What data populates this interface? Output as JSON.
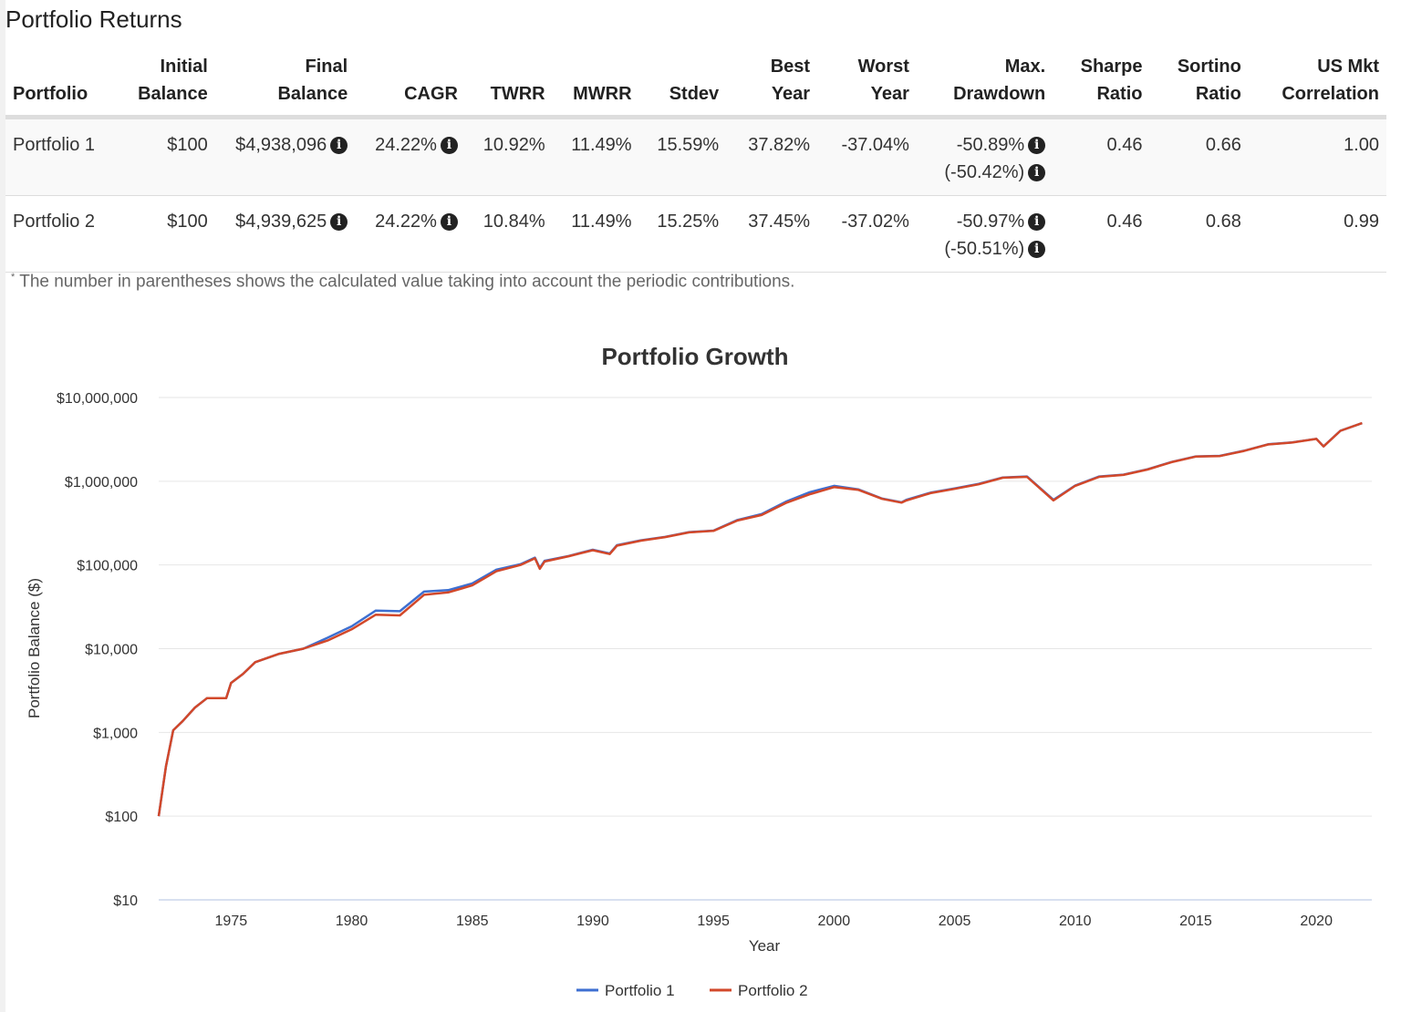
{
  "title": "Portfolio Returns",
  "table": {
    "headers": [
      [
        "",
        "Portfolio"
      ],
      [
        "Initial",
        "Balance"
      ],
      [
        "Final",
        "Balance"
      ],
      [
        "",
        "CAGR"
      ],
      [
        "",
        "TWRR"
      ],
      [
        "",
        "MWRR"
      ],
      [
        "",
        "Stdev"
      ],
      [
        "Best",
        "Year"
      ],
      [
        "Worst",
        "Year"
      ],
      [
        "Max.",
        "Drawdown"
      ],
      [
        "Sharpe",
        "Ratio"
      ],
      [
        "Sortino",
        "Ratio"
      ],
      [
        "US Mkt",
        "Correlation"
      ]
    ],
    "rows": [
      {
        "portfolio": "Portfolio 1",
        "initial": "$100",
        "final": "$4,938,096",
        "cagr": "24.22%",
        "twrr": "10.92%",
        "mwrr": "11.49%",
        "stdev": "15.59%",
        "best": "37.82%",
        "worst": "-37.04%",
        "maxdd": "-50.89%",
        "maxdd_contrib": "(-50.42%)",
        "sharpe": "0.46",
        "sortino": "0.66",
        "corr": "1.00"
      },
      {
        "portfolio": "Portfolio 2",
        "initial": "$100",
        "final": "$4,939,625",
        "cagr": "24.22%",
        "twrr": "10.84%",
        "mwrr": "11.49%",
        "stdev": "15.25%",
        "best": "37.45%",
        "worst": "-37.02%",
        "maxdd": "-50.97%",
        "maxdd_contrib": "(-50.51%)",
        "sharpe": "0.46",
        "sortino": "0.68",
        "corr": "0.99"
      }
    ],
    "info_icon": "info-circle-icon"
  },
  "footnote_mark": "*",
  "footnote": "The number in parentheses shows the calculated value taking into account the periodic contributions.",
  "chart_data": {
    "type": "line",
    "title": "Portfolio Growth",
    "xlabel": "Year",
    "ylabel": "Portfolio Balance ($)",
    "yscale": "log",
    "ylim": [
      10,
      10000000
    ],
    "xlim": [
      1972,
      2022.3
    ],
    "xticks": [
      "1975",
      "1980",
      "1985",
      "1990",
      "1995",
      "2000",
      "2005",
      "2010",
      "2015",
      "2020"
    ],
    "yticks": [
      "$10",
      "$100",
      "$1,000",
      "$10,000",
      "$100,000",
      "$1,000,000",
      "$10,000,000"
    ],
    "grid": true,
    "legend": "bottom",
    "x": [
      1972.0,
      1972.3,
      1972.6,
      1973,
      1973.5,
      1974,
      1974.8,
      1975,
      1975.5,
      1976,
      1977,
      1978,
      1979,
      1980,
      1981,
      1982,
      1983,
      1984,
      1985,
      1986,
      1987,
      1987.6,
      1987.8,
      1988,
      1989,
      1990,
      1990.7,
      1991,
      1992,
      1993,
      1994,
      1995,
      1996,
      1997,
      1998,
      1999,
      2000,
      2001,
      2002,
      2002.8,
      2003,
      2004,
      2005,
      2006,
      2007,
      2008,
      2009.1,
      2010,
      2011,
      2012,
      2013,
      2014,
      2015,
      2016,
      2017,
      2018,
      2019,
      2020,
      2020.3,
      2021,
      2021.9
    ],
    "series": [
      {
        "name": "Portfolio 1",
        "color": "#3d6fd1",
        "values": [
          100,
          390,
          1060,
          1370,
          1980,
          2560,
          2560,
          3900,
          5000,
          6900,
          8700,
          10000,
          13500,
          18500,
          28500,
          28000,
          48000,
          50000,
          60000,
          88000,
          102000,
          122000,
          92000,
          112000,
          128000,
          152000,
          137000,
          172000,
          197000,
          217000,
          247000,
          257000,
          345000,
          405000,
          570000,
          740000,
          880000,
          800000,
          620000,
          560000,
          600000,
          730000,
          820000,
          930000,
          1110000,
          1140000,
          600000,
          890000,
          1140000,
          1200000,
          1390000,
          1700000,
          1980000,
          2010000,
          2310000,
          2760000,
          2910000,
          3210000,
          2610000,
          4010000,
          4938096
        ]
      },
      {
        "name": "Portfolio 2",
        "color": "#d2482a",
        "values": [
          100,
          390,
          1060,
          1370,
          1980,
          2560,
          2560,
          3900,
          5000,
          6900,
          8700,
          10000,
          12500,
          17000,
          25500,
          25000,
          44000,
          47000,
          57000,
          84000,
          100000,
          120000,
          90000,
          110000,
          127000,
          150000,
          135000,
          170000,
          195000,
          215000,
          245000,
          255000,
          340000,
          395000,
          550000,
          700000,
          850000,
          790000,
          615000,
          555000,
          590000,
          720000,
          810000,
          920000,
          1100000,
          1130000,
          590000,
          880000,
          1130000,
          1190000,
          1380000,
          1690000,
          1970000,
          2000000,
          2300000,
          2750000,
          2900000,
          3200000,
          2600000,
          4000000,
          4939625
        ]
      }
    ]
  }
}
